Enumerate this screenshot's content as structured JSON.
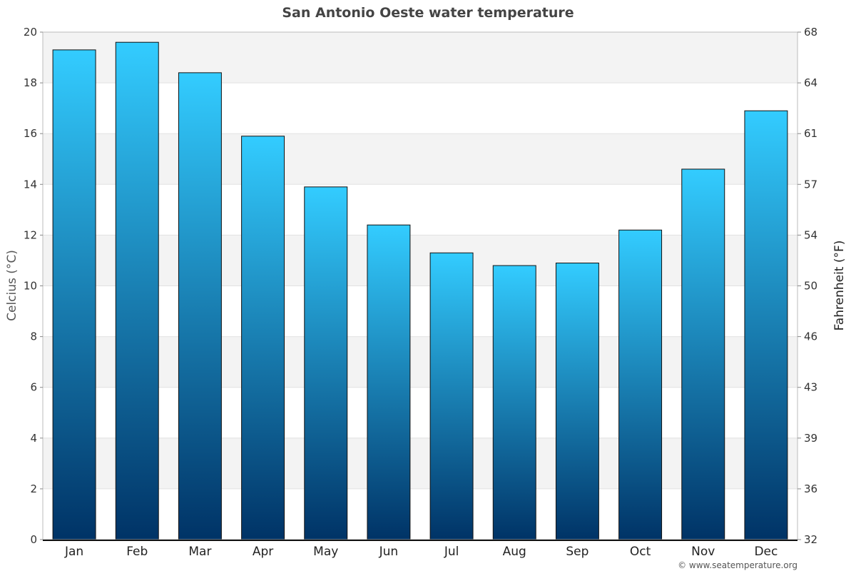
{
  "chart_data": {
    "type": "bar",
    "title": "San Antonio Oeste water temperature",
    "ylabel": "Celcius (°C)",
    "y2label": "Fahrenheit (°F)",
    "categories": [
      "Jan",
      "Feb",
      "Mar",
      "Apr",
      "May",
      "Jun",
      "Jul",
      "Aug",
      "Sep",
      "Oct",
      "Nov",
      "Dec"
    ],
    "values": [
      19.3,
      19.6,
      18.4,
      15.9,
      13.9,
      12.4,
      11.3,
      10.8,
      10.9,
      12.2,
      14.6,
      16.9
    ],
    "ylim": [
      0,
      20
    ],
    "yticks": [
      "0",
      "2",
      "4",
      "6",
      "8",
      "10",
      "12",
      "14",
      "16",
      "18",
      "20"
    ],
    "y2ticks": [
      "32",
      "36",
      "39",
      "43",
      "46",
      "50",
      "54",
      "57",
      "61",
      "64",
      "68"
    ],
    "grid": true,
    "legend": "none",
    "colors": {
      "bar_top": "#33ccff",
      "bar_bottom": "#003366",
      "band_shade": "#f3f3f3",
      "grid": "#e2e2e2"
    }
  },
  "credit": "© www.seatemperature.org"
}
